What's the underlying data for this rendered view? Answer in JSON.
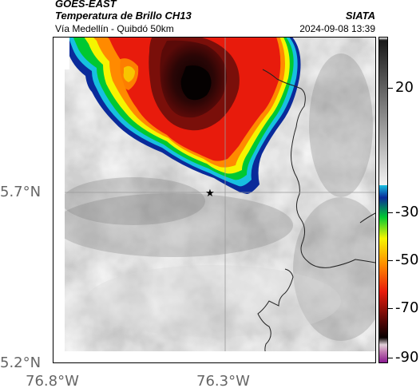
{
  "header": {
    "satellite": "GOES-EAST",
    "product": "Temperatura de Brillo CH13",
    "route": "Vía Medellín - Quibdó 50km",
    "agency": "SIATA",
    "datetime": "2024-09-08 13:39"
  },
  "map": {
    "lat_labels": [
      "5.7°N",
      "5.2°N"
    ],
    "lon_labels": [
      "76.8°W",
      "76.3°W"
    ],
    "marker": "star-marker"
  },
  "colorbar": {
    "tick_labels": [
      "20",
      "-30",
      "-50",
      "-70",
      "-90"
    ]
  },
  "colors": {
    "storm_core": "#140404",
    "storm_red": "#e81b0c",
    "storm_yellow": "#f5f500",
    "storm_green": "#00c832",
    "storm_blue": "#0a2a9a",
    "storm_cyan": "#17c0e0",
    "gridline": "#9a9a9a"
  }
}
